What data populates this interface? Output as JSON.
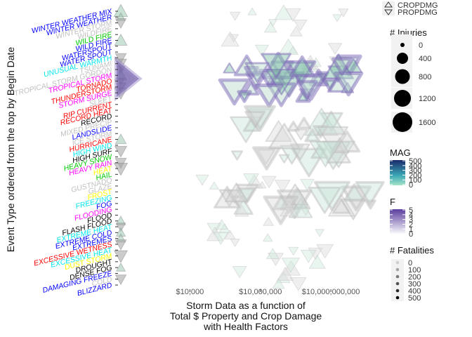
{
  "chart_data": {
    "type": "scatter",
    "x_scale": "log10",
    "xlim": [
      10,
      1000000000000
    ],
    "x_ticks": [
      {
        "value": 10000,
        "label": "$10,000"
      },
      {
        "value": 10000000,
        "label": "$10,000,000"
      },
      {
        "value": 10000000000,
        "label": "$10,000,000,000"
      }
    ],
    "xlabel_lines": [
      "Storm Data as a function of",
      "Total $ Property and Crop Damage",
      "with Health Factors"
    ],
    "ylabel": "Event Type ordered from the top by Begin Date",
    "categories": [
      {
        "label": "WINTER WEATHER MIX",
        "color": "#0000ff"
      },
      {
        "label": "WINTER WEATHER",
        "color": "#0000ff"
      },
      {
        "label": "WINTER STORM",
        "color": "#c0c0c0"
      },
      {
        "label": "WILDFIRE",
        "color": "#c0c0c0"
      },
      {
        "label": "WILD FIRE",
        "color": "#00c800"
      },
      {
        "label": "WILD FIRE",
        "color": "#0000ff"
      },
      {
        "label": "WATERSPOUT",
        "color": "#0000ff"
      },
      {
        "label": "WATER SPOUT",
        "color": "#0000ff"
      },
      {
        "label": "UNUSUAL WARMTH",
        "color": "#00e5ee"
      },
      {
        "label": "TSUNAMI",
        "color": "#c0c0c0"
      },
      {
        "label": "TROPICAL STORM GORDON",
        "color": "#c0c0c0"
      },
      {
        "label": "TROPICAL STORM",
        "color": "#ff00ff"
      },
      {
        "label": "TORNADO",
        "color": "#ff0000"
      },
      {
        "label": "THUNDERSTORM",
        "color": "#ff0000"
      },
      {
        "label": "STORM SURGE",
        "color": "#ff00ff"
      },
      {
        "label": "SLEET",
        "color": "#c0c0c0"
      },
      {
        "label": "RIP CURRENT",
        "color": "#ff0000"
      },
      {
        "label": "RECORD HEAT",
        "color": "#ff0000"
      },
      {
        "label": "RECORD",
        "color": "#000000"
      },
      {
        "label": "MIXED PRECIP",
        "color": "#c0c0c0"
      },
      {
        "label": "LANDSLIDE",
        "color": "#0000ff"
      },
      {
        "label": "ICE STORM",
        "color": "#c0c0c0"
      },
      {
        "label": "HURRICANE",
        "color": "#ff0000"
      },
      {
        "label": "HIGH WIND",
        "color": "#00e5ee"
      },
      {
        "label": "HIGH SURF",
        "color": "#000000"
      },
      {
        "label": "HEAVY SNOW",
        "color": "#00c800"
      },
      {
        "label": "HEAVY RAIN",
        "color": "#ff00ff"
      },
      {
        "label": "HEAT",
        "color": "#ffff00"
      },
      {
        "label": "HAIL",
        "color": "#00c800"
      },
      {
        "label": "GUSTNADO",
        "color": "#c0c0c0"
      },
      {
        "label": "GLAZE",
        "color": "#c0c0c0"
      },
      {
        "label": "FROST",
        "color": "#ffff00"
      },
      {
        "label": "FREEZING",
        "color": "#00e5ee"
      },
      {
        "label": "FOG",
        "color": "#0000ff"
      },
      {
        "label": "FLOODING",
        "color": "#ff00ff"
      },
      {
        "label": "FLOOD",
        "color": "#000000"
      },
      {
        "label": "FLASH FLOOD",
        "color": "#000000"
      },
      {
        "label": "EXTREME HEAT",
        "color": "#00e5ee"
      },
      {
        "label": "EXTREME COLD",
        "color": "#0000ff"
      },
      {
        "label": "EXTREMES",
        "color": "#0000ff"
      },
      {
        "label": "EXCESSIVE WETNESS",
        "color": "#ff0000"
      },
      {
        "label": "EXCESSIVE HEAT",
        "color": "#00e5ee"
      },
      {
        "label": "DUST STORM",
        "color": "#ffff00"
      },
      {
        "label": "DROUGHT",
        "color": "#000000"
      },
      {
        "label": "DENSE FOG",
        "color": "#000000"
      },
      {
        "label": "DAMAGING FREEZE",
        "color": "#0000ff"
      },
      {
        "label": "COLD",
        "color": "#c0c0c0"
      },
      {
        "label": "BLIZZARD",
        "color": "#0000ff"
      }
    ],
    "series": [
      {
        "name": "CROPDMG",
        "shape": "triangle-up"
      },
      {
        "name": "PROPDMG",
        "shape": "triangle-down"
      }
    ],
    "legends": {
      "shape": {
        "items": [
          "CROPDMG",
          "PROPDMG"
        ]
      },
      "injuries": {
        "title": "# Injuries",
        "breaks": [
          0,
          400,
          800,
          1200,
          1600
        ]
      },
      "mag": {
        "title": "MAG",
        "breaks": [
          0,
          100,
          200,
          300,
          400,
          500
        ],
        "colors": [
          "#a6e3c8",
          "#1a2a6c"
        ]
      },
      "f": {
        "title": "F",
        "breaks": [
          0,
          1,
          2,
          3,
          4,
          5
        ],
        "colors": [
          "#ffffff",
          "#5a3e9e"
        ]
      },
      "fatalities": {
        "title": "# Fatalities",
        "breaks": [
          0,
          100,
          200,
          300,
          400,
          500
        ]
      }
    },
    "clusters": [
      {
        "y_from": 0,
        "y_to": 10,
        "x_min": 100000,
        "x_max": 100000000000,
        "count": 22,
        "kind": "light"
      },
      {
        "y_from": 9,
        "y_to": 15,
        "x_min": 300000,
        "x_max": 100000000000,
        "count": 34,
        "kind": "dense"
      },
      {
        "y_from": 18,
        "y_to": 26,
        "x_min": 1000000,
        "x_max": 100000000000,
        "count": 30,
        "kind": "gray"
      },
      {
        "y_from": 27,
        "y_to": 30,
        "x_min": 1000,
        "x_max": 10000000000,
        "count": 8,
        "kind": "light"
      },
      {
        "y_from": 31,
        "y_to": 34,
        "x_min": 100000,
        "x_max": 10000000000000,
        "count": 30,
        "kind": "gray"
      },
      {
        "y_from": 34,
        "y_to": 45,
        "x_min": 100000,
        "x_max": 100000000000,
        "count": 24,
        "kind": "light"
      },
      {
        "y_from": 45,
        "y_to": 47,
        "x_min": 10000000,
        "x_max": 1000000000,
        "count": 4,
        "kind": "light"
      }
    ],
    "grid": false
  }
}
